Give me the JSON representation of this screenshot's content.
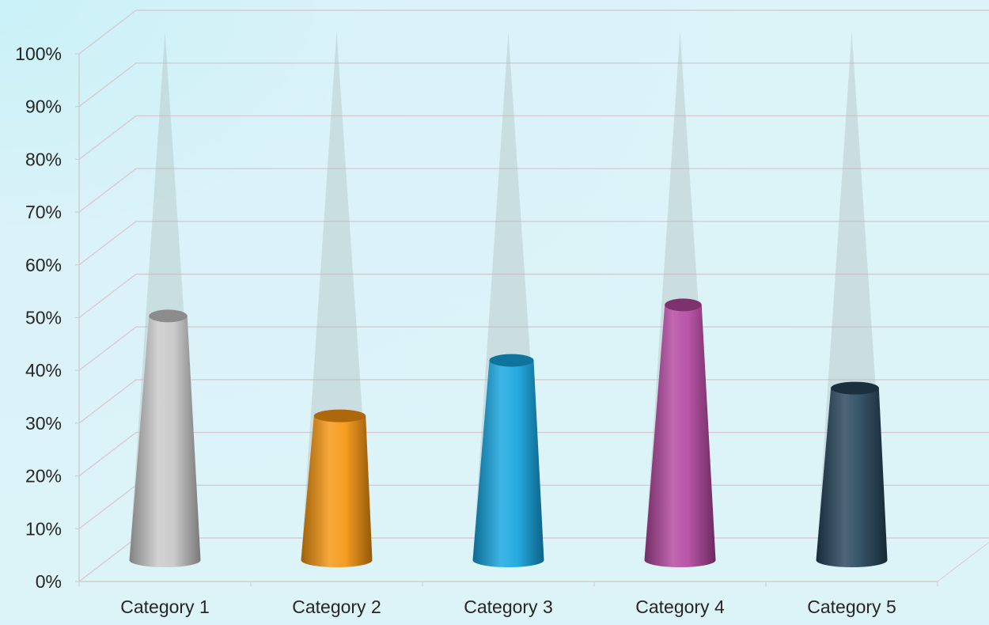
{
  "chart_data": {
    "type": "bar",
    "categories": [
      "Category 1",
      "Category 2",
      "Category 3",
      "Category 4",
      "Category 5"
    ],
    "values": [
      44,
      26,
      36,
      46,
      31
    ],
    "ylim": [
      0,
      100
    ],
    "yticks": [
      "0%",
      "10%",
      "20%",
      "30%",
      "40%",
      "50%",
      "60%",
      "70%",
      "80%",
      "90%",
      "100%"
    ],
    "grid": true,
    "legend": "none",
    "colors": [
      "#c8c8c8",
      "#f5950f",
      "#14a5e0",
      "#b2469f",
      "#26445a"
    ]
  }
}
